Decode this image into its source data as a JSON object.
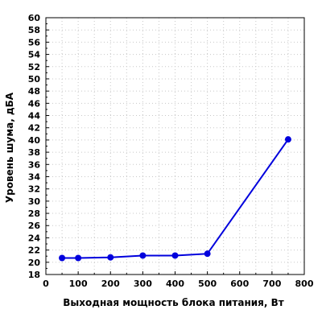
{
  "chart_data": {
    "type": "line",
    "title": "",
    "xlabel": "Выходная мощность блока питания, Вт",
    "ylabel": "Уровень шума, дБА",
    "xlim": [
      0,
      800
    ],
    "ylim": [
      18,
      60
    ],
    "xticks": [
      0,
      100,
      200,
      300,
      400,
      500,
      600,
      700,
      800
    ],
    "yticks": [
      18,
      20,
      22,
      24,
      26,
      28,
      30,
      32,
      34,
      36,
      38,
      40,
      42,
      44,
      46,
      48,
      50,
      52,
      54,
      56,
      58,
      60
    ],
    "grid": true,
    "series": [
      {
        "color": "#0000dd",
        "x": [
          50,
          100,
          200,
          300,
          400,
          500,
          750
        ],
        "y": [
          20.7,
          20.7,
          20.8,
          21.1,
          21.1,
          21.4,
          40.1
        ]
      }
    ]
  }
}
